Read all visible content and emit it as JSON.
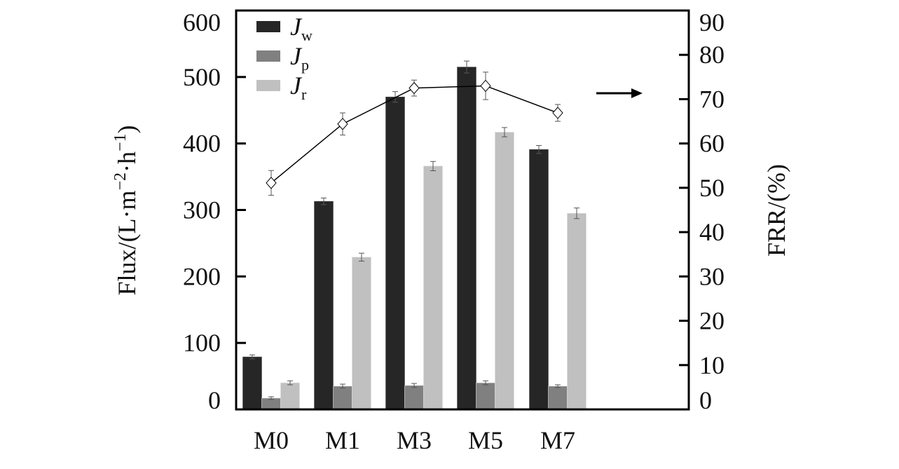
{
  "chart_data": {
    "type": "bar",
    "categories": [
      "M0",
      "M1",
      "M3",
      "M5",
      "M7"
    ],
    "ylabel": "Flux/(L·m⁻²·h⁻¹)",
    "ylabel_parts": {
      "base": "Flux/(L·m",
      "exp1": "−2",
      "mid": "·h",
      "exp2": "−1",
      "end": ")"
    },
    "y2label": "FRR/(%)",
    "ylim": [
      0,
      600
    ],
    "y2lim": [
      0,
      90
    ],
    "yticks": [
      0,
      100,
      200,
      300,
      400,
      500,
      600
    ],
    "y2ticks": [
      0,
      10,
      20,
      30,
      40,
      50,
      60,
      70,
      80,
      90
    ],
    "legend_position": "top-left",
    "series": [
      {
        "name": "Jw",
        "label_main": "J",
        "label_sub": "w",
        "color": "#262626",
        "values": [
          79,
          313,
          470,
          515,
          391
        ],
        "errors": [
          3,
          5,
          8,
          9,
          6
        ]
      },
      {
        "name": "Jp",
        "label_main": "J",
        "label_sub": "p",
        "color": "#808080",
        "values": [
          17,
          35,
          36,
          40,
          35
        ],
        "errors": [
          2,
          3,
          3,
          3,
          2
        ]
      },
      {
        "name": "Jr",
        "label_main": "J",
        "label_sub": "r",
        "color": "#c0c0c0",
        "values": [
          40,
          229,
          366,
          417,
          295
        ],
        "errors": [
          3,
          6,
          7,
          7,
          8
        ]
      }
    ],
    "line_series": {
      "name": "FRR",
      "axis": "right",
      "marker": "diamond",
      "values": [
        51.1,
        64.4,
        72.5,
        73.0,
        66.9
      ],
      "errors": [
        2.8,
        2.5,
        1.8,
        3.1,
        1.9
      ]
    },
    "annotation": "arrow pointing right (FRR on right axis)"
  }
}
